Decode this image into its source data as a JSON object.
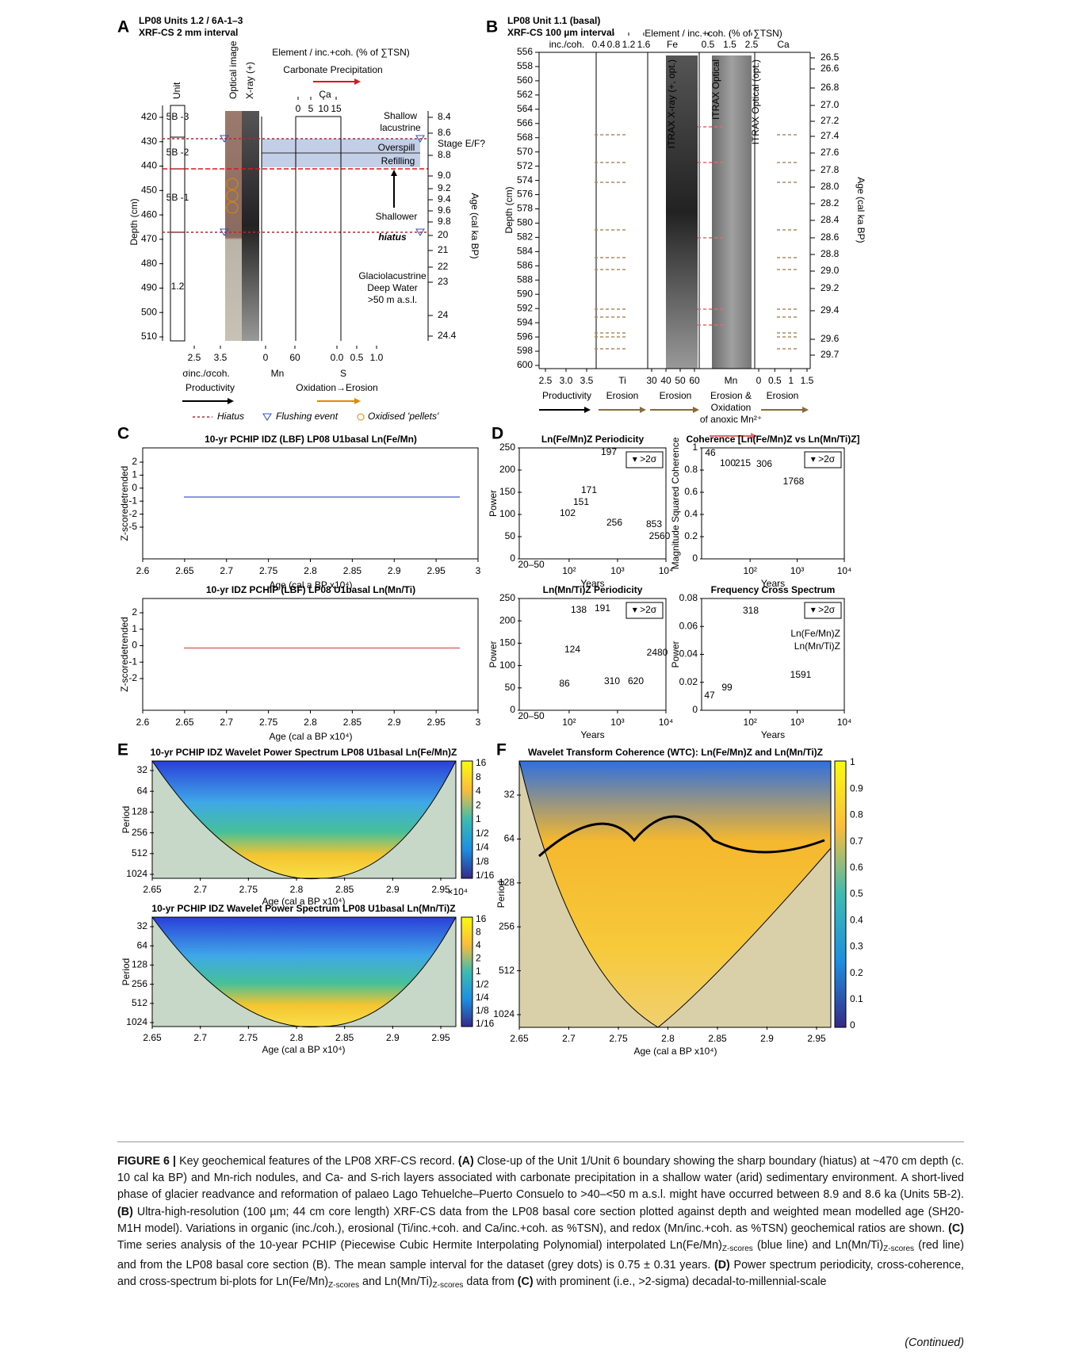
{
  "panel_a": {
    "letter": "A",
    "title": "LP08  Units 1.2 / 6A-1–3",
    "subtitle": "XRF-CS 2 mm interval",
    "header": "Element / inc.+coh. (% of ∑TSN)",
    "header_arrow": "Carbonate Precipitation",
    "columns": [
      "Unit",
      "Optical image",
      "X-ray (+)"
    ],
    "ca_label": "Ca",
    "ca_ticks": [
      "0",
      "5",
      "10",
      "15"
    ],
    "units": [
      "5B -3",
      "5B -2",
      "5B -1",
      "1.2"
    ],
    "y_label": "Depth (cm)",
    "y_ticks": [
      "420",
      "430",
      "440",
      "450",
      "460",
      "470",
      "480",
      "490",
      "500",
      "510"
    ],
    "y2_label": "Age (cal ka BP)",
    "y2_ticks": [
      "8.4",
      "8.6",
      "8.8",
      "9.0",
      "9.2",
      "9.4",
      "9.6",
      "9.8",
      "20",
      "21",
      "22",
      "23",
      "24",
      "24.4"
    ],
    "bottom_ticks": [
      [
        "2.5",
        "3.5"
      ],
      [
        "0",
        "60"
      ],
      [
        "0.0",
        "0.5",
        "1.0"
      ]
    ],
    "bottom_labels": [
      "σinc./σcoh.",
      "Mn",
      "S"
    ],
    "arrow_labels": [
      "Productivity",
      "Oxidation→Erosion"
    ],
    "annotations": [
      "Shallow",
      "lacustrine",
      "Overspill",
      "Refilling",
      "Stage E/F?",
      "Shallower",
      "hiatus",
      "Glaciolacustrine",
      "Deep Water",
      ">50 m a.s.l."
    ],
    "legend": [
      "Hiatus",
      "Flushing event",
      "Oxidised 'pellets'"
    ]
  },
  "panel_b": {
    "letter": "B",
    "title": "LP08 Unit 1.1 (basal)",
    "subtitle": "XRF-CS 100 µm interval",
    "header": "Element / inc.+coh. (% of ∑TSN)",
    "top_labels": [
      "inc./coh.",
      "Fe",
      "Ca"
    ],
    "top_ticks": [
      [
        "0.4",
        "0.8",
        "1.2",
        "1.6"
      ],
      [
        "0.5",
        "1.5",
        "2.5"
      ]
    ],
    "y_label": "Depth (cm)",
    "y_ticks": [
      "556",
      "558",
      "560",
      "562",
      "564",
      "566",
      "568",
      "570",
      "572",
      "574",
      "576",
      "578",
      "580",
      "582",
      "584",
      "586",
      "588",
      "590",
      "592",
      "594",
      "596",
      "598",
      "600"
    ],
    "y2_label": "Age (cal ka BP)",
    "y2_ticks": [
      "26.5",
      "26.6",
      "26.8",
      "27.0",
      "27.2",
      "27.4",
      "27.6",
      "27.8",
      "28.0",
      "28.2",
      "28.4",
      "28.6",
      "28.8",
      "29.0",
      "29.2",
      "29.4",
      "29.6",
      "29.7"
    ],
    "bottom_ticks": [
      [
        "2.5",
        "3.0",
        "3.5"
      ],
      [
        "30",
        "40",
        "50",
        "60"
      ],
      [
        "0",
        "0.5",
        "1",
        "1.5"
      ]
    ],
    "bottom_labels": [
      "Ti",
      "Mn"
    ],
    "arrow_labels": [
      "Productivity",
      "Erosion",
      "Erosion",
      "Erosion &",
      "Oxidation",
      "of anoxic Mn²⁺",
      "Erosion"
    ],
    "core_labels": [
      "ITRAX X-ray (+, opt.)",
      "ITRAX Optical",
      "ITRAX Optical (opt.)"
    ]
  },
  "panel_c": {
    "letter": "C",
    "plots": [
      {
        "title": "10-yr PCHIP IDZ (LBF) LP08 U1basal Ln(Fe/Mn)",
        "y_ticks": [
          "2",
          "1",
          "0",
          "-1",
          "-2",
          "-5"
        ],
        "color": "#1c2fc4"
      },
      {
        "title": "10-yr IDZ PCHIP (LBF) LP08 U1basal Ln(Mn/Ti)",
        "y_ticks": [
          "2",
          "1",
          "0",
          "-1",
          "-2"
        ],
        "color": "#c8161d"
      }
    ],
    "y_label": "Z-scoredetrended",
    "x_ticks": [
      "2.6",
      "2.65",
      "2.7",
      "2.75",
      "2.8",
      "2.85",
      "2.9",
      "2.95",
      "3"
    ],
    "x_label": "Age (cal a BP x10⁴)"
  },
  "panel_d": {
    "letter": "D",
    "legend": "▾ >2σ",
    "x_label": "Years",
    "plots": [
      {
        "title": "Ln(Fe/Mn)Z Periodicity",
        "y_label": "Power",
        "y_ticks": [
          "0",
          "50",
          "100",
          "150",
          "200",
          "250"
        ],
        "x_ticks": [
          "10²",
          "10³",
          "10⁴"
        ],
        "color": "#1c2fc4",
        "peaks": [
          "197",
          "171",
          "151",
          "102",
          "256",
          "853",
          "2560",
          "20–50"
        ]
      },
      {
        "title": "Coherence [Ln(Fe/Mn)Z vs Ln(Mn/Ti)Z]",
        "y_label": "Magnitude Squared Coherence",
        "y_ticks": [
          "0",
          "0.2",
          "0.4",
          "0.6",
          "0.8",
          "1"
        ],
        "x_ticks": [
          "10²",
          "10³",
          "10⁴"
        ],
        "color": "#2a8a2a",
        "peaks": [
          "46",
          "100",
          "215",
          "306",
          "1768"
        ]
      },
      {
        "title": "Ln(Mn/Ti)Z Periodicity",
        "y_label": "Power",
        "y_ticks": [
          "0",
          "50",
          "100",
          "150",
          "200",
          "250"
        ],
        "x_ticks": [
          "10²",
          "10³",
          "10⁴"
        ],
        "color": "#c8161d",
        "peaks": [
          "138",
          "191",
          "124",
          "86",
          "310",
          "620",
          "2480",
          "20–50"
        ]
      },
      {
        "title": "Frequency Cross Spectrum",
        "y_label": "Power",
        "y_ticks": [
          "0",
          "0.02",
          "0.04",
          "0.06",
          "0.08"
        ],
        "x_ticks": [
          "10²",
          "10³",
          "10⁴"
        ],
        "color": "#e08a00",
        "peaks": [
          "318",
          "99",
          "47",
          "1591"
        ],
        "legend_series": [
          "Ln(Fe/Mn)Z",
          "Ln(Mn/Ti)Z"
        ]
      }
    ]
  },
  "panel_e": {
    "letter": "E",
    "plots": [
      {
        "title": "10-yr PCHIP IDZ Wavelet Power Spectrum LP08 U1basal Ln(Fe/Mn)Z"
      },
      {
        "title": "10-yr PCHIP IDZ Wavelet Power Spectrum LP08 U1basal Ln(Mn/Ti)Z"
      }
    ],
    "y_label": "Period",
    "y_ticks": [
      "32",
      "64",
      "128",
      "256",
      "512",
      "1024"
    ],
    "x_ticks": [
      "2.65",
      "2.7",
      "2.75",
      "2.8",
      "2.85",
      "2.9",
      "2.95"
    ],
    "x_label": "Age (cal a BP x10⁴)",
    "exponent": "×10⁴",
    "colorbar_ticks": [
      "16",
      "8",
      "4",
      "2",
      "1",
      "1/2",
      "1/4",
      "1/8",
      "1/16"
    ]
  },
  "panel_f": {
    "letter": "F",
    "title": "Wavelet Transform Coherence (WTC): Ln(Fe/Mn)Z and Ln(Mn/Ti)Z",
    "y_label": "Period",
    "y_ticks": [
      "32",
      "64",
      "128",
      "256",
      "512",
      "1024"
    ],
    "x_ticks": [
      "2.65",
      "2.7",
      "2.75",
      "2.8",
      "2.85",
      "2.9",
      "2.95"
    ],
    "x_label": "Age (cal a BP x10⁴)",
    "colorbar_ticks": [
      "1",
      "0.9",
      "0.8",
      "0.7",
      "0.6",
      "0.5",
      "0.4",
      "0.3",
      "0.2",
      "0.1",
      "0"
    ]
  },
  "caption": {
    "runs": [
      {
        "text": "FIGURE 6 |",
        "style": "bold"
      },
      {
        "text": " Key geochemical features of the LP08 XRF-CS record. "
      },
      {
        "text": "(A)",
        "style": "bold"
      },
      {
        "text": " Close-up of the Unit 1/Unit 6 boundary showing the sharp boundary (hiatus) at ~470 cm depth (c. 10 cal ka BP) and Mn-rich nodules, and Ca- and S-rich layers associated with carbonate precipitation in a shallow water (arid) sedimentary environment. A short-lived phase of glacier readvance and reformation of palaeo Lago Tehuelche–Puerto Consuelo to >40–<50 m a.s.l. might have occurred between 8.9 and 8.6 ka (Units 5B-2). "
      },
      {
        "text": "(B)",
        "style": "bold"
      },
      {
        "text": " Ultra-high-resolution (100 µm; 44 cm core length) XRF-CS data from the LP08 basal core section plotted against depth and weighted mean modelled age (SH20-M1H model). Variations in organic (inc./coh.), erosional (Ti/inc.+coh. and Ca/inc.+coh. as %TSN), and redox (Mn/inc.+coh. as %TSN) geochemical ratios are shown. "
      },
      {
        "text": "(C)",
        "style": "bold"
      },
      {
        "text": " Time series analysis of the 10-year PCHIP (Piecewise Cubic Hermite Interpolating Polynomial) interpolated Ln(Fe/Mn)"
      },
      {
        "text": "Z-scores",
        "style": "sub"
      },
      {
        "text": " (blue line) and Ln(Mn/Ti)"
      },
      {
        "text": "Z-scores",
        "style": "sub"
      },
      {
        "text": " (red line) and from the LP08 basal core section (B). The mean sample interval for the dataset (grey dots) is 0.75 ± 0.31 years. "
      },
      {
        "text": "(D)",
        "style": "bold"
      },
      {
        "text": " Power spectrum periodicity, cross-coherence, and cross-spectrum bi-plots for Ln(Fe/Mn)"
      },
      {
        "text": "Z-scores",
        "style": "sub"
      },
      {
        "text": " and Ln(Mn/Ti)"
      },
      {
        "text": "Z-scores",
        "style": "sub"
      },
      {
        "text": " data from "
      },
      {
        "text": "(C)",
        "style": "bold"
      },
      {
        "text": " with prominent (i.e., >2-sigma) decadal-to-millennial-scale"
      }
    ],
    "continued": "(Continued)"
  }
}
